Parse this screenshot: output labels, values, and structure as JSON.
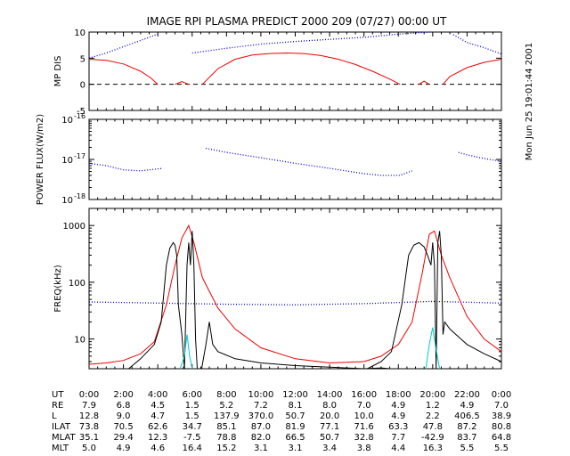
{
  "title": "IMAGE  RPI PLASMA PREDICT 2000 209 (07/27) 00:00 UT",
  "side_stamp": "Mon Jun 25 19:01:44 2001",
  "colors": {
    "axis": "#000000",
    "blue": "#0000cc",
    "red": "#ee0000",
    "cyan": "#00cccc",
    "black": "#000000"
  },
  "chart_data": [
    {
      "type": "line",
      "ylabel": "MP DIS",
      "ylim": [
        -5,
        10
      ],
      "yticks": [
        "10",
        "5",
        "0",
        "-5"
      ],
      "reference_line": {
        "y": 0,
        "style": "dashed"
      },
      "series": [
        {
          "color": "blue",
          "style": "dotted",
          "segments": [
            {
              "x": [
                0,
                1,
                2,
                3,
                4
              ],
              "y": [
                5.0,
                6.0,
                7.2,
                8.4,
                9.6
              ]
            },
            {
              "x": [
                6,
                8,
                10,
                12,
                14,
                16,
                18,
                19.8
              ],
              "y": [
                6.0,
                6.9,
                7.7,
                8.2,
                8.6,
                9.0,
                9.6,
                10.0
              ]
            },
            {
              "x": [
                21.2,
                22,
                23,
                24
              ],
              "y": [
                9.5,
                8.0,
                7.0,
                5.8
              ]
            }
          ]
        },
        {
          "color": "red",
          "style": "solid",
          "segments": [
            {
              "x": [
                0,
                1,
                2,
                3,
                3.6,
                4.0
              ],
              "y": [
                4.8,
                4.6,
                3.9,
                2.5,
                1.2,
                0
              ]
            },
            {
              "x": [
                5.0,
                5.4,
                5.8
              ],
              "y": [
                0,
                0.5,
                0
              ]
            },
            {
              "x": [
                6.6,
                7.5,
                8.5,
                9.5,
                10.5,
                11.5,
                12.5,
                13.5,
                14.5,
                15.5,
                16.5,
                17.5,
                18.1
              ],
              "y": [
                0,
                3.0,
                4.8,
                5.6,
                5.9,
                6.0,
                5.9,
                5.5,
                4.8,
                3.8,
                2.5,
                1.0,
                0
              ]
            },
            {
              "x": [
                19.2,
                19.5,
                19.8
              ],
              "y": [
                0,
                0.6,
                0
              ]
            },
            {
              "x": [
                20.6,
                21,
                22,
                23,
                24
              ],
              "y": [
                0,
                1.5,
                3.2,
                4.2,
                4.8
              ]
            }
          ]
        }
      ]
    },
    {
      "type": "line",
      "ylabel": "POWER FLUX(W/m2)",
      "yscale": "log",
      "ylim": [
        1e-18,
        1e-16
      ],
      "yticks": [
        {
          "base": "10",
          "exp": "-16"
        },
        {
          "base": "10",
          "exp": "-17"
        },
        {
          "base": "10",
          "exp": "-18"
        }
      ],
      "series": [
        {
          "color": "blue",
          "style": "dotted",
          "segments": [
            {
              "x": [
                0,
                1,
                2,
                3,
                4.3
              ],
              "y": [
                8e-18,
                7e-18,
                5.5e-18,
                5.2e-18,
                6e-18
              ]
            },
            {
              "x": [
                6.8,
                8,
                10,
                12,
                14,
                16,
                17,
                18.1,
                18.8
              ],
              "y": [
                1.9e-17,
                1.5e-17,
                1.1e-17,
                8e-18,
                6e-18,
                4.4e-18,
                4e-18,
                4e-18,
                5.2e-18
              ]
            },
            {
              "x": [
                21.5,
                22,
                23,
                24
              ],
              "y": [
                1.5e-17,
                1.3e-17,
                1.05e-17,
                9e-18
              ]
            }
          ]
        }
      ]
    },
    {
      "type": "line",
      "ylabel": "FREQ(kHz)",
      "yscale": "log",
      "ylim": [
        3,
        2000
      ],
      "yticks": [
        "1000",
        "100",
        "10"
      ],
      "series": [
        {
          "color": "blue",
          "style": "dotted",
          "segments": [
            {
              "x": [
                0,
                4,
                8,
                12,
                16,
                20,
                24
              ],
              "y": [
                45,
                43,
                41,
                40,
                42,
                46,
                43
              ]
            }
          ]
        },
        {
          "color": "red",
          "style": "solid",
          "segments": [
            {
              "x": [
                0,
                1,
                2,
                3,
                3.8,
                4.5,
                5.0,
                5.4,
                5.8,
                6.1,
                6.6,
                7.5,
                8.5,
                10,
                12,
                14,
                16,
                17,
                18,
                18.8,
                19.4,
                19.8,
                20.1,
                20.5,
                21,
                22,
                23,
                24
              ],
              "y": [
                3.6,
                3.8,
                4.2,
                5.5,
                9,
                40,
                200,
                600,
                1000,
                500,
                120,
                35,
                15,
                7,
                4.5,
                3.8,
                4.0,
                5,
                8,
                20,
                150,
                700,
                800,
                300,
                120,
                25,
                10,
                6
              ]
            }
          ]
        },
        {
          "color": "black",
          "style": "solid",
          "segments": [
            {
              "x": [
                2.3,
                3.0,
                3.8,
                4.2,
                4.5,
                4.7,
                4.9,
                5.0,
                5.1,
                5.2,
                5.4,
                5.55
              ],
              "y": [
                3,
                4.5,
                8,
                20,
                200,
                400,
                500,
                450,
                300,
                40,
                12,
                3
              ]
            },
            {
              "x": [
                5.55,
                5.7,
                5.8,
                5.9,
                6.0,
                6.1,
                6.2,
                6.3
              ],
              "y": [
                3,
                200,
                500,
                200,
                800,
                200,
                10,
                3
              ]
            },
            {
              "x": [
                6.55,
                6.8,
                7.0,
                7.2,
                7.5,
                8.5,
                10,
                12,
                14,
                16,
                17,
                17.5,
                18.2
              ],
              "y": [
                3,
                8,
                20,
                8,
                6,
                4.5,
                3.8,
                3.4,
                3.2,
                3.0,
                3.1,
                3.0,
                3.0
              ]
            },
            {
              "x": [
                16.2,
                17,
                17.6,
                18.2,
                18.6,
                18.9,
                19.2,
                19.5,
                19.7,
                19.9,
                20.0
              ],
              "y": [
                3,
                4,
                6,
                40,
                300,
                450,
                500,
                420,
                300,
                200,
                500
              ]
            },
            {
              "x": [
                20.0,
                20.1,
                20.2,
                20.3,
                20.4,
                20.5,
                20.6,
                20.7,
                21,
                22,
                23,
                24
              ],
              "y": [
                500,
                200,
                3,
                500,
                800,
                300,
                12,
                20,
                15,
                8,
                5.5,
                4
              ]
            }
          ]
        },
        {
          "color": "cyan",
          "style": "solid",
          "segments": [
            {
              "x": [
                5.3,
                5.55,
                5.7,
                5.85,
                6.0
              ],
              "y": [
                3,
                5,
                12,
                5,
                3
              ]
            },
            {
              "x": [
                19.6,
                19.8,
                20.0,
                20.15,
                20.4
              ],
              "y": [
                3,
                8,
                16,
                8,
                3
              ]
            }
          ]
        }
      ]
    }
  ],
  "x_axis": {
    "range": [
      0,
      24
    ],
    "tick_labels": [
      "0:00",
      "2:00",
      "4:00",
      "6:00",
      "8:00",
      "10:00",
      "12:00",
      "14:00",
      "16:00",
      "18:00",
      "20:00",
      "22:00",
      "0:00"
    ]
  },
  "ephemeris": [
    {
      "label": "UT",
      "values": [
        "0:00",
        "2:00",
        "4:00",
        "6:00",
        "8:00",
        "10:00",
        "12:00",
        "14:00",
        "16:00",
        "18:00",
        "20:00",
        "22:00",
        "0:00"
      ]
    },
    {
      "label": "RE",
      "values": [
        "7.9",
        "6.8",
        "4.5",
        "1.5",
        "5.2",
        "7.2",
        "8.1",
        "8.0",
        "7.0",
        "4.9",
        "1.2",
        "4.9",
        "7.0"
      ]
    },
    {
      "label": "L",
      "values": [
        "12.8",
        "9.0",
        "4.7",
        "1.5",
        "137.9",
        "370.0",
        "50.7",
        "20.0",
        "10.0",
        "4.9",
        "2.2",
        "406.5",
        "38.9"
      ]
    },
    {
      "label": "ILAT",
      "values": [
        "73.8",
        "70.5",
        "62.6",
        "34.7",
        "85.1",
        "87.0",
        "81.9",
        "77.1",
        "71.6",
        "63.3",
        "47.8",
        "87.2",
        "80.8"
      ]
    },
    {
      "label": "MLAT",
      "values": [
        "35.1",
        "29.4",
        "12.3",
        "-7.5",
        "78.8",
        "82.0",
        "66.5",
        "50.7",
        "32.8",
        "7.7",
        "-42.9",
        "83.7",
        "64.8"
      ]
    },
    {
      "label": "MLT",
      "values": [
        "5.0",
        "4.9",
        "4.6",
        "16.4",
        "15.2",
        "3.1",
        "3.1",
        "3.4",
        "3.8",
        "4.4",
        "16.3",
        "5.5",
        "5.5"
      ]
    }
  ]
}
